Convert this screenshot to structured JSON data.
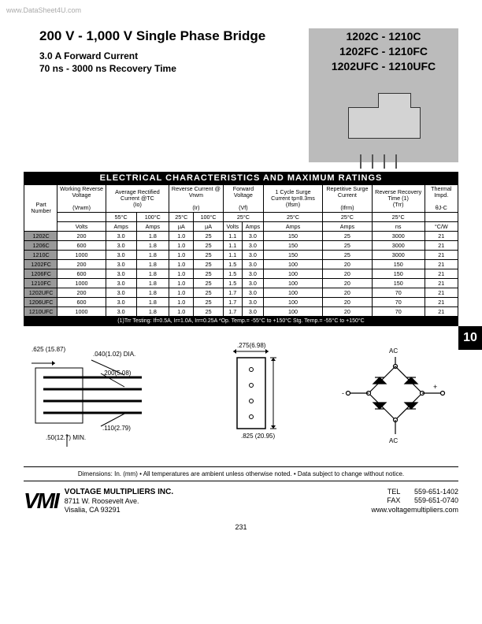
{
  "watermark": "www.DataSheet4U.com",
  "header": {
    "title": "200 V - 1,000 V Single Phase Bridge",
    "sub1": "3.0 A Forward Current",
    "sub2": "70 ns - 3000 ns Recovery Time",
    "pn1": "1202C - 1210C",
    "pn2": "1202FC - 1210FC",
    "pn3": "1202UFC - 1210UFC"
  },
  "table_title": "ELECTRICAL CHARACTERISTICS AND MAXIMUM RATINGS",
  "cols": {
    "c1": "Part Number",
    "c2": "Working Reverse Voltage",
    "c3": "Average Rectified Current @TC",
    "c4": "Reverse Current @ Vrwm",
    "c5": "Forward Voltage",
    "c6": "1 Cycle Surge Current tp=8.3ms",
    "c7": "Repetitive Surge Current",
    "c8": "Reverse Recovery Time (1)",
    "c9": "Thermal Impd.",
    "s2": "(Vrwm)",
    "s3": "(Io)",
    "s4": "(Ir)",
    "s5": "(Vf)",
    "s6": "(Ifsm)",
    "s7": "(Ifrm)",
    "s8": "(Trr)",
    "s9": "θJ-C"
  },
  "temps": {
    "t55": "55°C",
    "t100": "100°C",
    "t25": "25°C"
  },
  "units": {
    "volts": "Volts",
    "amps": "Amps",
    "ua": "µA",
    "ns": "ns",
    "cw": "°C/W"
  },
  "rows": [
    {
      "pn": "1202C",
      "v": "200",
      "a55": "3.0",
      "a100": "1.8",
      "ir25": "1.0",
      "ir100": "25",
      "vf": "1.1",
      "if": "3.0",
      "ifsm": "150",
      "ifrm": "25",
      "trr": "3000",
      "th": "21"
    },
    {
      "pn": "1206C",
      "v": "600",
      "a55": "3.0",
      "a100": "1.8",
      "ir25": "1.0",
      "ir100": "25",
      "vf": "1.1",
      "if": "3.0",
      "ifsm": "150",
      "ifrm": "25",
      "trr": "3000",
      "th": "21"
    },
    {
      "pn": "1210C",
      "v": "1000",
      "a55": "3.0",
      "a100": "1.8",
      "ir25": "1.0",
      "ir100": "25",
      "vf": "1.1",
      "if": "3.0",
      "ifsm": "150",
      "ifrm": "25",
      "trr": "3000",
      "th": "21"
    },
    {
      "pn": "1202FC",
      "v": "200",
      "a55": "3.0",
      "a100": "1.8",
      "ir25": "1.0",
      "ir100": "25",
      "vf": "1.5",
      "if": "3.0",
      "ifsm": "100",
      "ifrm": "20",
      "trr": "150",
      "th": "21"
    },
    {
      "pn": "1206FC",
      "v": "600",
      "a55": "3.0",
      "a100": "1.8",
      "ir25": "1.0",
      "ir100": "25",
      "vf": "1.5",
      "if": "3.0",
      "ifsm": "100",
      "ifrm": "20",
      "trr": "150",
      "th": "21"
    },
    {
      "pn": "1210FC",
      "v": "1000",
      "a55": "3.0",
      "a100": "1.8",
      "ir25": "1.0",
      "ir100": "25",
      "vf": "1.5",
      "if": "3.0",
      "ifsm": "100",
      "ifrm": "20",
      "trr": "150",
      "th": "21"
    },
    {
      "pn": "1202UFC",
      "v": "200",
      "a55": "3.0",
      "a100": "1.8",
      "ir25": "1.0",
      "ir100": "25",
      "vf": "1.7",
      "if": "3.0",
      "ifsm": "100",
      "ifrm": "20",
      "trr": "70",
      "th": "21"
    },
    {
      "pn": "1206UFC",
      "v": "600",
      "a55": "3.0",
      "a100": "1.8",
      "ir25": "1.0",
      "ir100": "25",
      "vf": "1.7",
      "if": "3.0",
      "ifsm": "100",
      "ifrm": "20",
      "trr": "70",
      "th": "21"
    },
    {
      "pn": "1210UFC",
      "v": "1000",
      "a55": "3.0",
      "a100": "1.8",
      "ir25": "1.0",
      "ir100": "25",
      "vf": "1.7",
      "if": "3.0",
      "ifsm": "100",
      "ifrm": "20",
      "trr": "70",
      "th": "21"
    }
  ],
  "footnote": "(1)Trr Testing:   If=0.5A,   Ir=1.0A,   Irr=0.25A   *Op. Temp.= -55°C to +150°C   Stg. Temp.= -55°C to +150°C",
  "side_tab": "10",
  "dims": {
    "d1": ".625 (15.87)",
    "d2": ".040(1.02) DIA.",
    "d3": ".200(5.08)",
    "d4": ".275(6.98)",
    "d5": ".110(2.79)",
    "d6": ".50(12.7) MIN.",
    "d7": ".825 (20.95)",
    "ac": "AC"
  },
  "footer_note": "Dimensions: In. (mm) • All temperatures are ambient unless otherwise noted. • Data subject to change without notice.",
  "footer": {
    "logo": "VMI",
    "company": "VOLTAGE MULTIPLIERS INC.",
    "addr1": "8711 W. Roosevelt Ave.",
    "addr2": "Visalia, CA 93291",
    "tel_label": "TEL",
    "tel": "559-651-1402",
    "fax_label": "FAX",
    "fax": "559-651-0740",
    "web": "www.voltagemultipliers.com"
  },
  "page": "231"
}
